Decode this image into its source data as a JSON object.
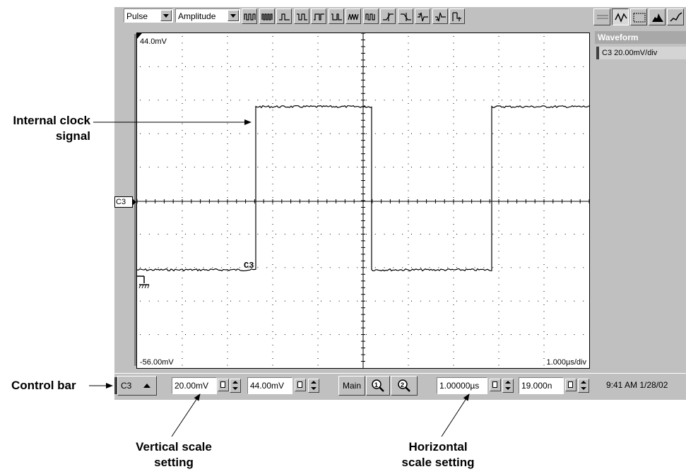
{
  "toolbar": {
    "measurement_type": "Pulse",
    "measurement": "Amplitude",
    "measure_icons": [
      "period-icon",
      "frequency-icon",
      "pos-width-icon",
      "neg-width-icon",
      "pos-duty-icon",
      "neg-duty-icon",
      "burst-width-icon",
      "cycle-icon",
      "rise-time-icon",
      "fall-time-icon",
      "pos-overshoot-icon",
      "neg-overshoot-icon",
      "cursor-measure-icon"
    ],
    "mode_icons": [
      "flat-icon",
      "waveform-icon",
      "grid-icon",
      "histogram-icon",
      "xy-icon"
    ]
  },
  "graticule": {
    "top_label": "44.0mV",
    "bottom_label": "-56.00mV",
    "timebase_label": "1.000µs/div",
    "channel_marker": "C3",
    "trace_label": "C3"
  },
  "right_panel": {
    "header": "Waveform",
    "item": "C3 20.00mV/div"
  },
  "control_bar": {
    "channel": "C3",
    "vertical_scale": "20.00mV",
    "vertical_offset": "44.00mV",
    "main_label": "Main",
    "horizontal_scale": "1.00000µs",
    "horizontal_position": "19.000n",
    "datetime": "9:41 AM 1/28/02"
  },
  "callouts": {
    "internal_clock_line1": "Internal clock",
    "internal_clock_line2": "signal",
    "control_bar": "Control bar",
    "vertical_line1": "Vertical scale",
    "vertical_line2": "setting",
    "horizontal_line1": "Horizontal",
    "horizontal_line2": "scale setting"
  }
}
